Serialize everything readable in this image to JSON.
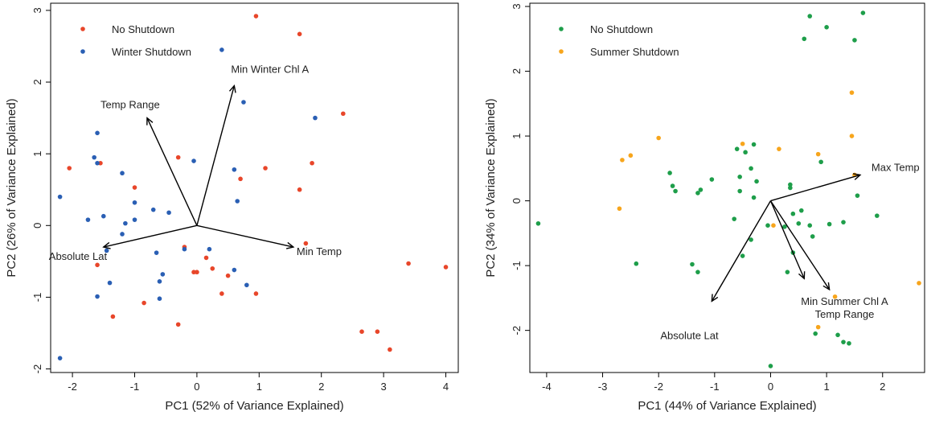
{
  "chart_data": [
    {
      "type": "scatter",
      "xlabel": "PC1 (52% of Variance Explained)",
      "ylabel": "PC2 (26% of Variance Explained)",
      "xlim": [
        -2.35,
        4.2
      ],
      "ylim": [
        -2.05,
        3.1
      ],
      "xticks": [
        -2,
        -1,
        0,
        1,
        2,
        3,
        4
      ],
      "yticks": [
        -2,
        -1,
        0,
        1,
        2,
        3
      ],
      "xtick_labels": [
        "-2",
        "-1",
        "0",
        "1",
        "2",
        "3",
        "4"
      ],
      "ytick_labels": [
        "-2",
        "-1",
        "0",
        "1",
        "2",
        "3"
      ],
      "grid": false,
      "legend_position": "top-left",
      "series": [
        {
          "name": "No Shutdown",
          "color": "#e8462a",
          "points": [
            [
              0.95,
              2.92
            ],
            [
              1.65,
              2.67
            ],
            [
              2.35,
              1.56
            ],
            [
              1.85,
              0.87
            ],
            [
              1.1,
              0.8
            ],
            [
              0.7,
              0.65
            ],
            [
              1.65,
              0.5
            ],
            [
              -2.05,
              0.8
            ],
            [
              -1.55,
              0.87
            ],
            [
              -0.3,
              0.95
            ],
            [
              -1.0,
              0.53
            ],
            [
              1.75,
              -0.25
            ],
            [
              -0.2,
              -0.3
            ],
            [
              0.15,
              -0.45
            ],
            [
              -1.6,
              -0.55
            ],
            [
              0.25,
              -0.6
            ],
            [
              -0.05,
              -0.65
            ],
            [
              0.0,
              -0.65
            ],
            [
              0.5,
              -0.7
            ],
            [
              0.95,
              -0.95
            ],
            [
              0.4,
              -0.95
            ],
            [
              -0.85,
              -1.08
            ],
            [
              -1.35,
              -1.27
            ],
            [
              -0.3,
              -1.38
            ],
            [
              3.4,
              -0.53
            ],
            [
              4.0,
              -0.58
            ],
            [
              2.65,
              -1.48
            ],
            [
              2.9,
              -1.48
            ],
            [
              3.1,
              -1.73
            ]
          ]
        },
        {
          "name": "Winter Shutdown",
          "color": "#2a5fb4",
          "points": [
            [
              0.4,
              2.45
            ],
            [
              0.75,
              1.72
            ],
            [
              1.9,
              1.5
            ],
            [
              -1.6,
              1.29
            ],
            [
              -1.65,
              0.95
            ],
            [
              -1.2,
              0.73
            ],
            [
              -0.05,
              0.9
            ],
            [
              -1.6,
              0.87
            ],
            [
              0.6,
              0.78
            ],
            [
              -2.2,
              0.4
            ],
            [
              -1.0,
              0.32
            ],
            [
              0.65,
              0.34
            ],
            [
              -1.15,
              0.03
            ],
            [
              -0.7,
              0.22
            ],
            [
              -0.45,
              0.18
            ],
            [
              -1.75,
              0.08
            ],
            [
              -1.5,
              0.13
            ],
            [
              -1.0,
              0.08
            ],
            [
              -1.2,
              -0.12
            ],
            [
              -0.2,
              -0.33
            ],
            [
              0.2,
              -0.33
            ],
            [
              -0.65,
              -0.38
            ],
            [
              -1.45,
              -0.35
            ],
            [
              0.6,
              -0.62
            ],
            [
              -0.55,
              -0.68
            ],
            [
              -0.6,
              -0.78
            ],
            [
              -1.4,
              -0.8
            ],
            [
              0.8,
              -0.83
            ],
            [
              -1.6,
              -0.99
            ],
            [
              -0.6,
              -1.02
            ],
            [
              -2.2,
              -1.85
            ]
          ]
        }
      ],
      "loadings": [
        {
          "label": "Min Winter Chl A",
          "x": 0.6,
          "y": 1.95
        },
        {
          "label": "Temp Range",
          "x": -0.8,
          "y": 1.5
        },
        {
          "label": "Min Temp",
          "x": 1.55,
          "y": -0.3
        },
        {
          "label": "Absolute Lat",
          "x": -1.5,
          "y": -0.3
        }
      ]
    },
    {
      "type": "scatter",
      "xlabel": "PC1 (44% of Variance Explained)",
      "ylabel": "PC2 (34% of Variance Explained)",
      "xlim": [
        -4.3,
        2.75
      ],
      "ylim": [
        -2.65,
        3.05
      ],
      "xticks": [
        -4,
        -3,
        -2,
        -1,
        0,
        1,
        2
      ],
      "yticks": [
        -2,
        -1,
        0,
        1,
        2,
        3
      ],
      "xtick_labels": [
        "-4",
        "-3",
        "-2",
        "-1",
        "0",
        "1",
        "2"
      ],
      "ytick_labels": [
        "-2",
        "-1",
        "0",
        "1",
        "2",
        "3"
      ],
      "grid": false,
      "legend_position": "top-left",
      "series": [
        {
          "name": "No Shutdown",
          "color": "#1e9e4a",
          "points": [
            [
              0.7,
              2.85
            ],
            [
              1.65,
              2.9
            ],
            [
              1.0,
              2.68
            ],
            [
              0.6,
              2.5
            ],
            [
              1.5,
              2.48
            ],
            [
              -0.6,
              0.8
            ],
            [
              -0.45,
              0.75
            ],
            [
              -0.3,
              0.87
            ],
            [
              -1.8,
              0.43
            ],
            [
              -1.75,
              0.23
            ],
            [
              -1.7,
              0.15
            ],
            [
              -1.3,
              0.12
            ],
            [
              -1.25,
              0.17
            ],
            [
              -1.05,
              0.33
            ],
            [
              -0.55,
              0.37
            ],
            [
              -0.35,
              0.5
            ],
            [
              -0.25,
              0.3
            ],
            [
              -0.55,
              0.15
            ],
            [
              -0.3,
              0.05
            ],
            [
              0.35,
              0.25
            ],
            [
              0.35,
              0.2
            ],
            [
              0.9,
              0.6
            ],
            [
              1.55,
              0.08
            ],
            [
              -0.05,
              -0.38
            ],
            [
              0.4,
              -0.2
            ],
            [
              0.5,
              -0.35
            ],
            [
              0.55,
              -0.15
            ],
            [
              0.25,
              -0.4
            ],
            [
              0.7,
              -0.38
            ],
            [
              1.05,
              -0.36
            ],
            [
              1.3,
              -0.33
            ],
            [
              1.9,
              -0.23
            ],
            [
              -0.65,
              -0.28
            ],
            [
              -0.35,
              -0.6
            ],
            [
              -0.5,
              -0.85
            ],
            [
              -1.4,
              -0.98
            ],
            [
              -1.3,
              -1.1
            ],
            [
              -2.4,
              -0.97
            ],
            [
              0.4,
              -0.8
            ],
            [
              0.75,
              -0.55
            ],
            [
              0.3,
              -1.1
            ],
            [
              0.8,
              -2.05
            ],
            [
              1.2,
              -2.07
            ],
            [
              1.3,
              -2.18
            ],
            [
              1.4,
              -2.2
            ],
            [
              0.0,
              -2.55
            ],
            [
              -4.15,
              -0.35
            ]
          ]
        },
        {
          "name": "Summer Shutdown",
          "color": "#f7a51c",
          "points": [
            [
              1.45,
              1.67
            ],
            [
              1.45,
              1.0
            ],
            [
              -2.0,
              0.97
            ],
            [
              -0.5,
              0.88
            ],
            [
              0.15,
              0.8
            ],
            [
              -2.5,
              0.7
            ],
            [
              -2.65,
              0.63
            ],
            [
              0.85,
              0.72
            ],
            [
              1.5,
              0.4
            ],
            [
              -2.7,
              -0.12
            ],
            [
              0.05,
              -0.38
            ],
            [
              1.15,
              -1.48
            ],
            [
              0.85,
              -1.95
            ],
            [
              2.65,
              -1.27
            ]
          ]
        }
      ],
      "loadings": [
        {
          "label": "Max Temp",
          "x": 1.6,
          "y": 0.4
        },
        {
          "label": "Min Summer Chl A",
          "x": 0.6,
          "y": -1.2
        },
        {
          "label": "Temp Range",
          "x": 1.05,
          "y": -1.37
        },
        {
          "label": "Absolute Lat",
          "x": -1.05,
          "y": -1.55
        }
      ]
    }
  ]
}
